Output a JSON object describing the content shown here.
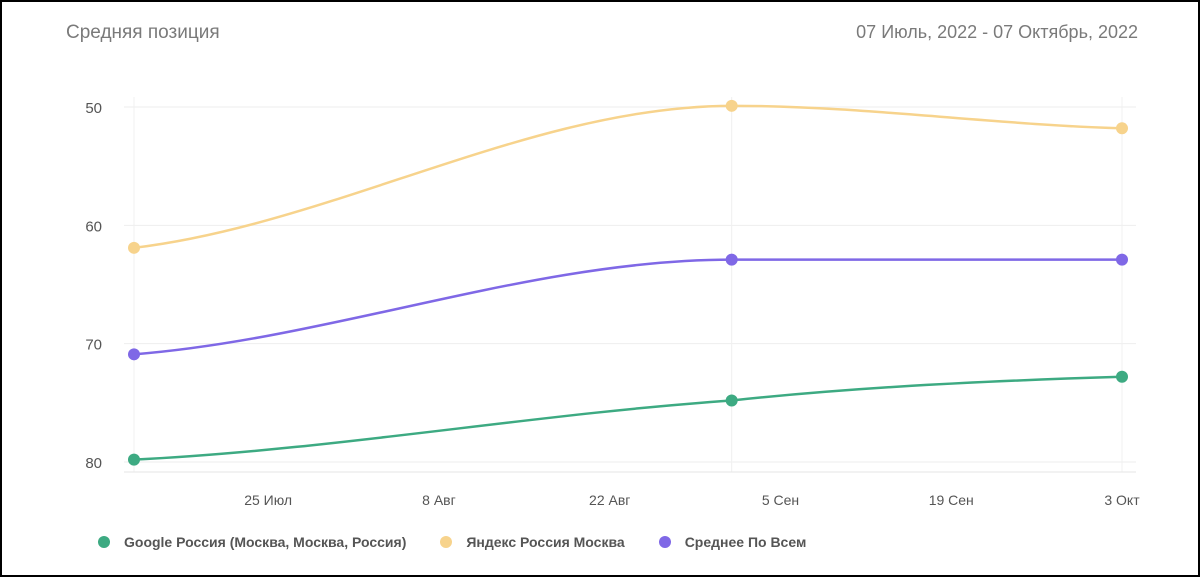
{
  "header": {
    "title": "Средняя позиция",
    "date_range": "07 Июль, 2022 - 07 Октябрь, 2022"
  },
  "chart_data": {
    "type": "line",
    "title": "Средняя позиция",
    "y_reversed": true,
    "ylim": [
      80,
      50
    ],
    "yticks": [
      50,
      60,
      70,
      80
    ],
    "x_range": [
      "2022-07-14",
      "2022-10-07"
    ],
    "xticks": [
      {
        "date": "2022-07-25",
        "label": "25 Июл"
      },
      {
        "date": "2022-08-08",
        "label": "8 Авг"
      },
      {
        "date": "2022-08-22",
        "label": "22 Авг"
      },
      {
        "date": "2022-09-05",
        "label": "5 Сен"
      },
      {
        "date": "2022-09-19",
        "label": "19 Сен"
      },
      {
        "date": "2022-10-03",
        "label": "3 Окт"
      }
    ],
    "grid": true,
    "legend_position": "bottom-left",
    "series": [
      {
        "name": "Google Россия (Москва, Москва, Россия)",
        "color": "#3daa82",
        "points": [
          {
            "date": "2022-07-14",
            "value": 79.8
          },
          {
            "date": "2022-09-01",
            "value": 74.8
          },
          {
            "date": "2022-10-03",
            "value": 72.8
          }
        ]
      },
      {
        "name": "Яндекс Россия Москва",
        "color": "#f7d38c",
        "points": [
          {
            "date": "2022-07-14",
            "value": 61.9
          },
          {
            "date": "2022-09-01",
            "value": 49.9
          },
          {
            "date": "2022-10-03",
            "value": 51.8
          }
        ]
      },
      {
        "name": "Среднее По Всем",
        "color": "#7f68e6",
        "points": [
          {
            "date": "2022-07-14",
            "value": 70.9
          },
          {
            "date": "2022-09-01",
            "value": 62.9
          },
          {
            "date": "2022-10-03",
            "value": 62.9
          }
        ]
      }
    ]
  }
}
